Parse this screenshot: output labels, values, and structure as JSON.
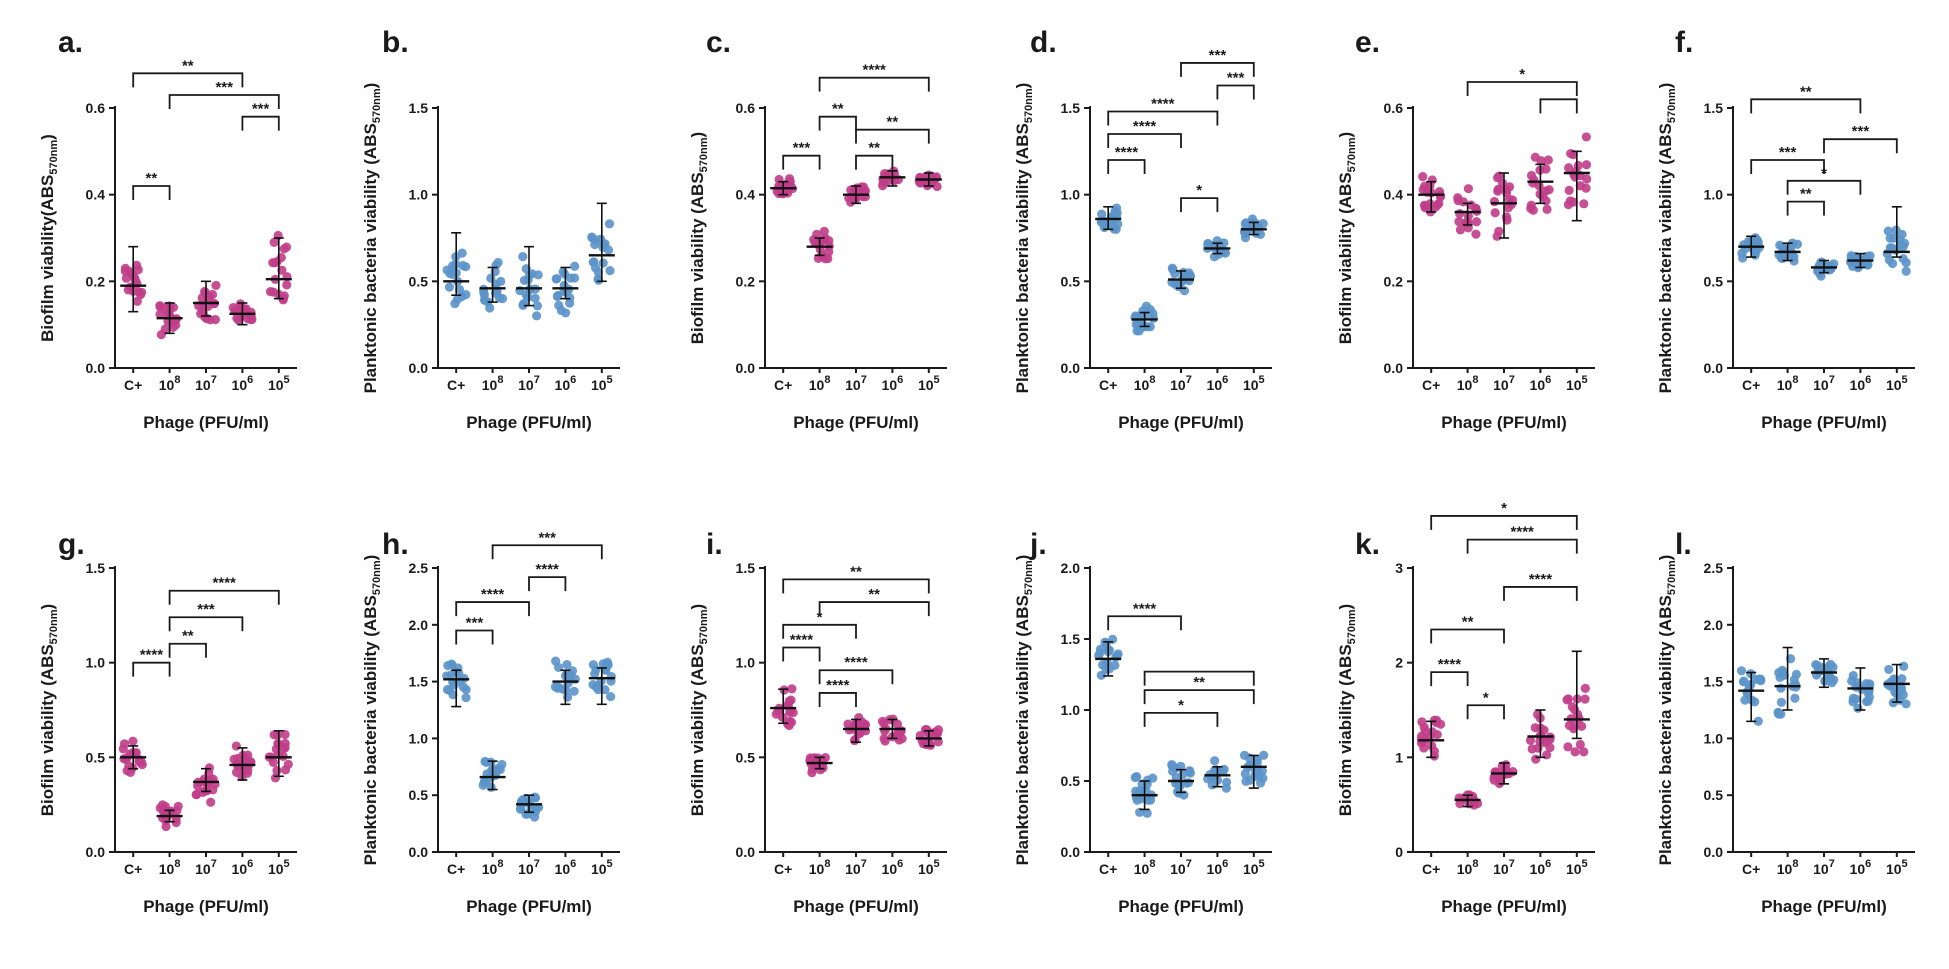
{
  "figure": {
    "colors": {
      "pink": "#c13d8a",
      "blue": "#5b93c9",
      "axis": "#1a1a1a"
    },
    "xlabel": "Phage (PFU/ml)"
  },
  "chart_data": [
    {
      "panel": "a.",
      "type": "scatter",
      "ylabel": "Biofilm viability(ABS570nm)",
      "ylim": [
        0,
        0.6
      ],
      "yticks": [
        "0.0",
        "0.2",
        "0.4",
        "0.6"
      ],
      "tickvals": [
        0,
        0.2,
        0.4,
        0.6
      ],
      "color": "pink",
      "categories": [
        "C+",
        "10^8",
        "10^7",
        "10^6",
        "10^5"
      ],
      "medians": [
        0.19,
        0.115,
        0.15,
        0.125,
        0.205
      ],
      "lower": [
        0.13,
        0.08,
        0.12,
        0.1,
        0.16
      ],
      "upper": [
        0.28,
        0.15,
        0.2,
        0.15,
        0.3
      ],
      "spread": [
        0.05,
        0.04,
        0.06,
        0.03,
        0.1
      ],
      "brackets": [
        {
          "from": 0,
          "to": 1,
          "y": 0.42,
          "label": "**"
        },
        {
          "from": 0,
          "to": 3,
          "y": 0.68,
          "label": "**"
        },
        {
          "from": 1,
          "to": 4,
          "y": 0.63,
          "label": "***"
        },
        {
          "from": 3,
          "to": 4,
          "y": 0.58,
          "label": "***"
        }
      ]
    },
    {
      "panel": "b.",
      "type": "scatter",
      "ylabel": "Planktonic bacteria viability (ABS570nm)",
      "ylim": [
        0,
        1.5
      ],
      "yticks": [
        "0.0",
        "0.5",
        "1.0",
        "1.5"
      ],
      "tickvals": [
        0,
        0.5,
        1,
        1.5
      ],
      "color": "blue",
      "categories": [
        "C+",
        "10^8",
        "10^7",
        "10^6",
        "10^5"
      ],
      "medians": [
        0.5,
        0.46,
        0.46,
        0.46,
        0.65
      ],
      "lower": [
        0.42,
        0.38,
        0.36,
        0.4,
        0.5
      ],
      "upper": [
        0.78,
        0.58,
        0.7,
        0.58,
        0.95
      ],
      "spread": [
        0.16,
        0.15,
        0.2,
        0.13,
        0.22
      ],
      "brackets": []
    },
    {
      "panel": "c.",
      "type": "scatter",
      "ylabel": "Biofilm viability (ABS570nm)",
      "ylim": [
        0,
        0.6
      ],
      "yticks": [
        "0.0",
        "0.2",
        "0.4",
        "0.6"
      ],
      "tickvals": [
        0,
        0.2,
        0.4,
        0.6
      ],
      "color": "pink",
      "categories": [
        "C+",
        "10^8",
        "10^7",
        "10^6",
        "10^5"
      ],
      "medians": [
        0.415,
        0.28,
        0.4,
        0.44,
        0.435
      ],
      "lower": [
        0.4,
        0.26,
        0.38,
        0.42,
        0.42
      ],
      "upper": [
        0.43,
        0.3,
        0.42,
        0.455,
        0.45
      ],
      "spread": [
        0.02,
        0.04,
        0.02,
        0.02,
        0.02
      ],
      "brackets": [
        {
          "from": 0,
          "to": 1,
          "y": 0.49,
          "label": "***"
        },
        {
          "from": 1,
          "to": 2,
          "y": 0.58,
          "label": "**"
        },
        {
          "from": 1,
          "to": 4,
          "y": 0.67,
          "label": "****"
        },
        {
          "from": 2,
          "to": 3,
          "y": 0.49,
          "label": "**"
        },
        {
          "from": 2,
          "to": 4,
          "y": 0.55,
          "label": "**"
        }
      ]
    },
    {
      "panel": "d.",
      "type": "scatter",
      "ylabel": "Planktonic bacteria viability (ABS570nm)",
      "ylim": [
        0,
        1.5
      ],
      "yticks": [
        "0.0",
        "0.5",
        "1.0",
        "1.5"
      ],
      "tickvals": [
        0,
        0.5,
        1,
        1.5
      ],
      "color": "blue",
      "categories": [
        "C+",
        "10^8",
        "10^7",
        "10^6",
        "10^5"
      ],
      "medians": [
        0.86,
        0.28,
        0.51,
        0.69,
        0.8
      ],
      "lower": [
        0.8,
        0.24,
        0.46,
        0.66,
        0.77
      ],
      "upper": [
        0.93,
        0.32,
        0.56,
        0.72,
        0.84
      ],
      "spread": [
        0.07,
        0.07,
        0.08,
        0.05,
        0.06
      ],
      "brackets": [
        {
          "from": 0,
          "to": 1,
          "y": 1.2,
          "label": "****"
        },
        {
          "from": 0,
          "to": 2,
          "y": 1.35,
          "label": "****"
        },
        {
          "from": 0,
          "to": 3,
          "y": 1.48,
          "label": "****"
        },
        {
          "from": 2,
          "to": 3,
          "y": 0.98,
          "label": "*"
        },
        {
          "from": 3,
          "to": 4,
          "y": 1.63,
          "label": "***"
        },
        {
          "from": 2,
          "to": 4,
          "y": 1.76,
          "label": "***"
        }
      ]
    },
    {
      "panel": "e.",
      "type": "scatter",
      "ylabel": "Biofilm viability (ABS570nm)",
      "ylim": [
        0,
        0.6
      ],
      "yticks": [
        "0.0",
        "0.2",
        "0.4",
        "0.6"
      ],
      "tickvals": [
        0,
        0.2,
        0.4,
        0.6
      ],
      "color": "pink",
      "categories": [
        "C+",
        "10^8",
        "10^7",
        "10^6",
        "10^5"
      ],
      "medians": [
        0.4,
        0.36,
        0.38,
        0.43,
        0.45
      ],
      "lower": [
        0.36,
        0.33,
        0.3,
        0.38,
        0.34
      ],
      "upper": [
        0.43,
        0.38,
        0.45,
        0.47,
        0.5
      ],
      "spread": [
        0.05,
        0.06,
        0.08,
        0.07,
        0.09
      ],
      "brackets": [
        {
          "from": 1,
          "to": 4,
          "y": 0.66,
          "label": "*"
        },
        {
          "from": 3,
          "to": 4,
          "y": 0.62,
          "label": ""
        }
      ]
    },
    {
      "panel": "f.",
      "type": "scatter",
      "ylabel": "Planktonic bacteria viability (ABS570nm)",
      "ylim": [
        0,
        1.5
      ],
      "yticks": [
        "0.0",
        "0.5",
        "1.0",
        "1.5"
      ],
      "tickvals": [
        0,
        0.5,
        1,
        1.5
      ],
      "color": "blue",
      "categories": [
        "C+",
        "10^8",
        "10^7",
        "10^6",
        "10^5"
      ],
      "medians": [
        0.7,
        0.67,
        0.58,
        0.62,
        0.67
      ],
      "lower": [
        0.64,
        0.62,
        0.55,
        0.58,
        0.64
      ],
      "upper": [
        0.76,
        0.72,
        0.62,
        0.66,
        0.93
      ],
      "spread": [
        0.07,
        0.06,
        0.05,
        0.05,
        0.14
      ],
      "brackets": [
        {
          "from": 0,
          "to": 3,
          "y": 1.55,
          "label": "**"
        },
        {
          "from": 0,
          "to": 2,
          "y": 1.2,
          "label": "***"
        },
        {
          "from": 1,
          "to": 3,
          "y": 1.08,
          "label": "*"
        },
        {
          "from": 1,
          "to": 2,
          "y": 0.96,
          "label": "**"
        },
        {
          "from": 2,
          "to": 4,
          "y": 1.32,
          "label": "***"
        }
      ]
    },
    {
      "panel": "g.",
      "type": "scatter",
      "ylabel": "Biofilm viability (ABS570nm)",
      "ylim": [
        0,
        1.5
      ],
      "yticks": [
        "0.0",
        "0.5",
        "1.0",
        "1.5"
      ],
      "tickvals": [
        0,
        0.5,
        1,
        1.5
      ],
      "color": "pink",
      "categories": [
        "C+",
        "10^8",
        "10^7",
        "10^6",
        "10^5"
      ],
      "medians": [
        0.5,
        0.19,
        0.37,
        0.46,
        0.5
      ],
      "lower": [
        0.44,
        0.16,
        0.32,
        0.38,
        0.4
      ],
      "upper": [
        0.56,
        0.22,
        0.44,
        0.55,
        0.64
      ],
      "spread": [
        0.08,
        0.07,
        0.1,
        0.1,
        0.14
      ],
      "brackets": [
        {
          "from": 0,
          "to": 1,
          "y": 1.0,
          "label": "****"
        },
        {
          "from": 1,
          "to": 2,
          "y": 1.1,
          "label": "**"
        },
        {
          "from": 1,
          "to": 3,
          "y": 1.24,
          "label": "***"
        },
        {
          "from": 1,
          "to": 4,
          "y": 1.38,
          "label": "****"
        }
      ]
    },
    {
      "panel": "h.",
      "type": "scatter",
      "ylabel": "Planktonic bacteria viability (ABS570nm)",
      "ylim": [
        0,
        2.5
      ],
      "yticks": [
        "0.0",
        "0.5",
        "1.0",
        "1.5",
        "2.0",
        "2.5"
      ],
      "tickvals": [
        0,
        0.5,
        1,
        1.5,
        2,
        2.5
      ],
      "color": "blue",
      "categories": [
        "C+",
        "10^8",
        "10^7",
        "10^6",
        "10^5"
      ],
      "medians": [
        1.52,
        0.66,
        0.42,
        1.5,
        1.53
      ],
      "lower": [
        1.28,
        0.55,
        0.35,
        1.3,
        1.3
      ],
      "upper": [
        1.6,
        0.8,
        0.5,
        1.6,
        1.62
      ],
      "spread": [
        0.18,
        0.18,
        0.1,
        0.22,
        0.22
      ],
      "brackets": [
        {
          "from": 0,
          "to": 1,
          "y": 1.95,
          "label": "***"
        },
        {
          "from": 0,
          "to": 2,
          "y": 2.2,
          "label": "****"
        },
        {
          "from": 2,
          "to": 3,
          "y": 2.42,
          "label": "****"
        },
        {
          "from": 1,
          "to": 4,
          "y": 2.7,
          "label": "***"
        }
      ]
    },
    {
      "panel": "i.",
      "type": "scatter",
      "ylabel": "Biofilm viability (ABS570nm)",
      "ylim": [
        0,
        1.5
      ],
      "yticks": [
        "0.0",
        "0.5",
        "1.0",
        "1.5"
      ],
      "tickvals": [
        0,
        0.5,
        1,
        1.5
      ],
      "color": "pink",
      "categories": [
        "C+",
        "10^8",
        "10^7",
        "10^6",
        "10^5"
      ],
      "medians": [
        0.76,
        0.47,
        0.65,
        0.65,
        0.6
      ],
      "lower": [
        0.68,
        0.44,
        0.58,
        0.6,
        0.56
      ],
      "upper": [
        0.86,
        0.5,
        0.7,
        0.7,
        0.64
      ],
      "spread": [
        0.1,
        0.05,
        0.07,
        0.06,
        0.06
      ],
      "brackets": [
        {
          "from": 0,
          "to": 1,
          "y": 1.08,
          "label": "****"
        },
        {
          "from": 0,
          "to": 2,
          "y": 1.2,
          "label": "*"
        },
        {
          "from": 0,
          "to": 4,
          "y": 1.44,
          "label": "**"
        },
        {
          "from": 1,
          "to": 2,
          "y": 0.84,
          "label": "****"
        },
        {
          "from": 1,
          "to": 3,
          "y": 0.96,
          "label": "****"
        },
        {
          "from": 1,
          "to": 4,
          "y": 1.32,
          "label": "**"
        }
      ]
    },
    {
      "panel": "j.",
      "type": "scatter",
      "ylabel": "Planktonic bacteria viability (ABS570nm)",
      "ylim": [
        0,
        2.0
      ],
      "yticks": [
        "0.0",
        "0.5",
        "1.0",
        "1.5",
        "2.0"
      ],
      "tickvals": [
        0,
        0.5,
        1,
        1.5,
        2
      ],
      "color": "blue",
      "categories": [
        "C+",
        "10^8",
        "10^7",
        "10^6",
        "10^5"
      ],
      "medians": [
        1.36,
        0.4,
        0.5,
        0.54,
        0.6
      ],
      "lower": [
        1.24,
        0.3,
        0.42,
        0.46,
        0.45
      ],
      "upper": [
        1.48,
        0.5,
        0.58,
        0.6,
        0.68
      ],
      "spread": [
        0.14,
        0.16,
        0.12,
        0.1,
        0.14
      ],
      "brackets": [
        {
          "from": 0,
          "to": 2,
          "y": 1.66,
          "label": "****"
        },
        {
          "from": 1,
          "to": 3,
          "y": 0.98,
          "label": "*"
        },
        {
          "from": 1,
          "to": 4,
          "y": 1.14,
          "label": "**"
        },
        {
          "from": 1,
          "to": 4,
          "y": 1.27,
          "label": ""
        }
      ]
    },
    {
      "panel": "k.",
      "type": "scatter",
      "ylabel": "Biofilm viability (ABS570nm)",
      "ylim": [
        0,
        3
      ],
      "yticks": [
        "0",
        "1",
        "2",
        "3"
      ],
      "tickvals": [
        0,
        1,
        2,
        3
      ],
      "color": "pink",
      "categories": [
        "C+",
        "10^8",
        "10^7",
        "10^6",
        "10^5"
      ],
      "medians": [
        1.18,
        0.55,
        0.83,
        1.22,
        1.4
      ],
      "lower": [
        1.0,
        0.48,
        0.72,
        1.0,
        1.2
      ],
      "upper": [
        1.38,
        0.6,
        0.94,
        1.5,
        2.12
      ],
      "spread": [
        0.2,
        0.07,
        0.15,
        0.28,
        0.45
      ],
      "brackets": [
        {
          "from": 0,
          "to": 1,
          "y": 1.9,
          "label": "****"
        },
        {
          "from": 1,
          "to": 2,
          "y": 1.55,
          "label": "*"
        },
        {
          "from": 0,
          "to": 2,
          "y": 2.35,
          "label": "**"
        },
        {
          "from": 2,
          "to": 4,
          "y": 2.8,
          "label": "****"
        },
        {
          "from": 1,
          "to": 4,
          "y": 3.3,
          "label": "****"
        },
        {
          "from": 0,
          "to": 4,
          "y": 3.55,
          "label": "*"
        }
      ]
    },
    {
      "panel": "l.",
      "type": "scatter",
      "ylabel": "Planktonic bacteria viability (ABS570nm)",
      "ylim": [
        0,
        2.5
      ],
      "yticks": [
        "0.0",
        "0.5",
        "1.0",
        "1.5",
        "2.0",
        "2.5"
      ],
      "tickvals": [
        0,
        0.5,
        1,
        1.5,
        2,
        2.5
      ],
      "color": "blue",
      "categories": [
        "C+",
        "10^8",
        "10^7",
        "10^6",
        "10^5"
      ],
      "medians": [
        1.42,
        1.46,
        1.58,
        1.44,
        1.48
      ],
      "lower": [
        1.15,
        1.25,
        1.45,
        1.25,
        1.32
      ],
      "upper": [
        1.58,
        1.8,
        1.7,
        1.62,
        1.65
      ],
      "spread": [
        0.25,
        0.25,
        0.15,
        0.22,
        0.2
      ],
      "brackets": []
    }
  ]
}
